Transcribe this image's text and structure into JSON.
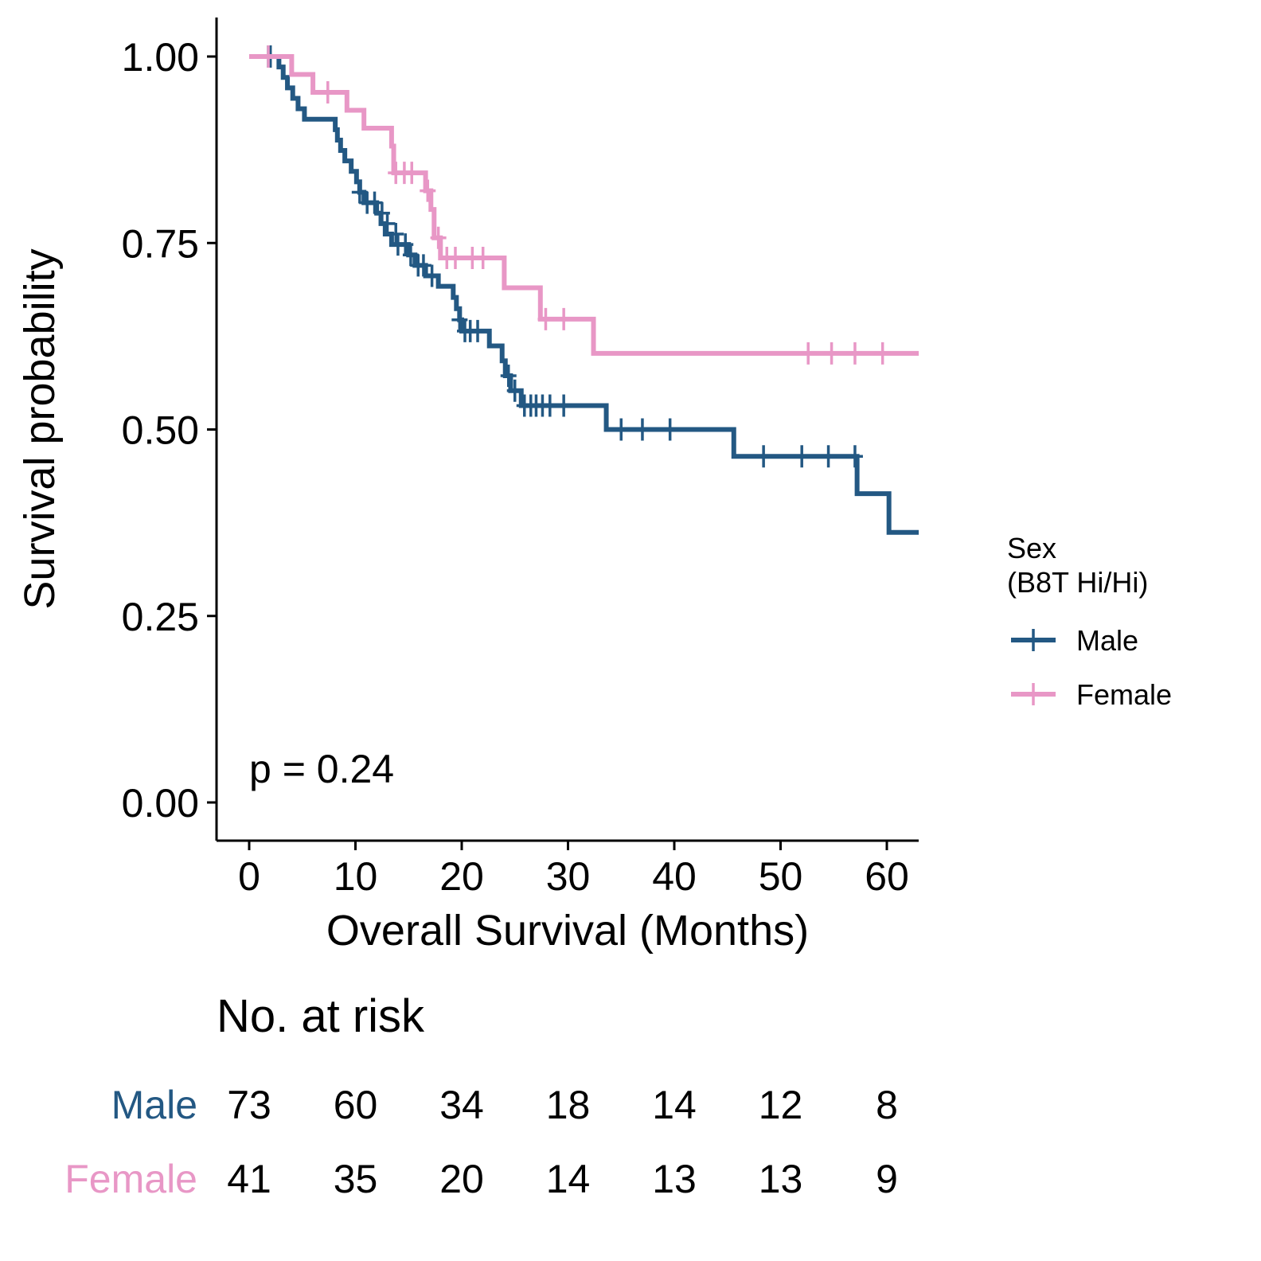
{
  "chart_data": {
    "type": "line",
    "subtype": "kaplan-meier",
    "xlabel": "Overall Survival (Months)",
    "ylabel": "Survival probability",
    "xlim": [
      -3,
      63
    ],
    "ylim": [
      -0.05,
      1.05
    ],
    "x_ticks": [
      "0",
      "10",
      "20",
      "30",
      "40",
      "50",
      "60"
    ],
    "y_ticks": [
      "0.00",
      "0.25",
      "0.50",
      "0.75",
      "1.00"
    ],
    "annotation": "p = 0.24",
    "legend": {
      "title_line1": "Sex",
      "title_line2": "(B8T Hi/Hi)",
      "position": "right"
    },
    "series": [
      {
        "name": "Male",
        "color": "#235883",
        "steps": [
          [
            0,
            1.0
          ],
          [
            2.8,
            0.986
          ],
          [
            3.2,
            0.972
          ],
          [
            3.6,
            0.958
          ],
          [
            4.1,
            0.944
          ],
          [
            4.6,
            0.93
          ],
          [
            5.2,
            0.916
          ],
          [
            8.1,
            0.902
          ],
          [
            8.3,
            0.888
          ],
          [
            8.6,
            0.874
          ],
          [
            9.0,
            0.86
          ],
          [
            9.6,
            0.846
          ],
          [
            10.1,
            0.832
          ],
          [
            10.4,
            0.818
          ],
          [
            10.8,
            0.804
          ],
          [
            12.0,
            0.79
          ],
          [
            12.4,
            0.776
          ],
          [
            12.8,
            0.762
          ],
          [
            13.4,
            0.748
          ],
          [
            15.0,
            0.734
          ],
          [
            15.6,
            0.72
          ],
          [
            16.6,
            0.706
          ],
          [
            17.8,
            0.692
          ],
          [
            19.2,
            0.677
          ],
          [
            19.5,
            0.662
          ],
          [
            19.8,
            0.647
          ],
          [
            20.0,
            0.632
          ],
          [
            22.6,
            0.612
          ],
          [
            23.8,
            0.592
          ],
          [
            24.1,
            0.572
          ],
          [
            24.6,
            0.552
          ],
          [
            25.6,
            0.532
          ],
          [
            33.6,
            0.5
          ],
          [
            45.6,
            0.464
          ],
          [
            57.2,
            0.414
          ],
          [
            60.2,
            0.362
          ],
          [
            63,
            0.362
          ]
        ],
        "censored": [
          [
            1.8,
            1.0
          ],
          [
            2.0,
            1.0
          ],
          [
            10.4,
            0.818
          ],
          [
            11.1,
            0.804
          ],
          [
            11.8,
            0.804
          ],
          [
            12.5,
            0.79
          ],
          [
            13.0,
            0.776
          ],
          [
            13.8,
            0.762
          ],
          [
            14.0,
            0.748
          ],
          [
            14.7,
            0.748
          ],
          [
            15.2,
            0.734
          ],
          [
            15.9,
            0.72
          ],
          [
            16.4,
            0.72
          ],
          [
            17.2,
            0.706
          ],
          [
            19.8,
            0.647
          ],
          [
            20.3,
            0.632
          ],
          [
            20.8,
            0.632
          ],
          [
            21.5,
            0.632
          ],
          [
            24.4,
            0.572
          ],
          [
            25.0,
            0.552
          ],
          [
            25.9,
            0.532
          ],
          [
            26.5,
            0.532
          ],
          [
            27.0,
            0.532
          ],
          [
            27.6,
            0.532
          ],
          [
            28.3,
            0.532
          ],
          [
            29.6,
            0.532
          ],
          [
            35.0,
            0.5
          ],
          [
            37.0,
            0.5
          ],
          [
            39.6,
            0.5
          ],
          [
            48.4,
            0.464
          ],
          [
            52.0,
            0.464
          ],
          [
            54.5,
            0.464
          ],
          [
            57.0,
            0.464
          ]
        ]
      },
      {
        "name": "Female",
        "color": "#e897c6",
        "steps": [
          [
            0,
            1.0
          ],
          [
            4.0,
            0.976
          ],
          [
            6.0,
            0.952
          ],
          [
            9.2,
            0.928
          ],
          [
            10.8,
            0.904
          ],
          [
            13.4,
            0.88
          ],
          [
            13.6,
            0.844
          ],
          [
            16.6,
            0.82
          ],
          [
            17.1,
            0.795
          ],
          [
            17.4,
            0.757
          ],
          [
            18.0,
            0.73
          ],
          [
            24.0,
            0.69
          ],
          [
            27.4,
            0.648
          ],
          [
            32.4,
            0.602
          ],
          [
            63,
            0.602
          ]
        ],
        "censored": [
          [
            1.8,
            1.0
          ],
          [
            7.4,
            0.952
          ],
          [
            13.8,
            0.844
          ],
          [
            14.6,
            0.844
          ],
          [
            15.3,
            0.844
          ],
          [
            16.8,
            0.82
          ],
          [
            17.8,
            0.757
          ],
          [
            18.6,
            0.73
          ],
          [
            19.4,
            0.73
          ],
          [
            21.0,
            0.73
          ],
          [
            22.0,
            0.73
          ],
          [
            27.9,
            0.648
          ],
          [
            29.6,
            0.648
          ],
          [
            52.6,
            0.602
          ],
          [
            54.8,
            0.602
          ],
          [
            57.0,
            0.602
          ],
          [
            59.6,
            0.602
          ]
        ]
      }
    ]
  },
  "risk_table": {
    "title": "No. at risk",
    "times": [
      0,
      10,
      20,
      30,
      40,
      50,
      60
    ],
    "rows": [
      {
        "label": "Male",
        "color": "#235883",
        "values": [
          "73",
          "60",
          "34",
          "18",
          "14",
          "12",
          "8"
        ]
      },
      {
        "label": "Female",
        "color": "#e897c6",
        "values": [
          "41",
          "35",
          "20",
          "14",
          "13",
          "13",
          "9"
        ]
      }
    ]
  }
}
